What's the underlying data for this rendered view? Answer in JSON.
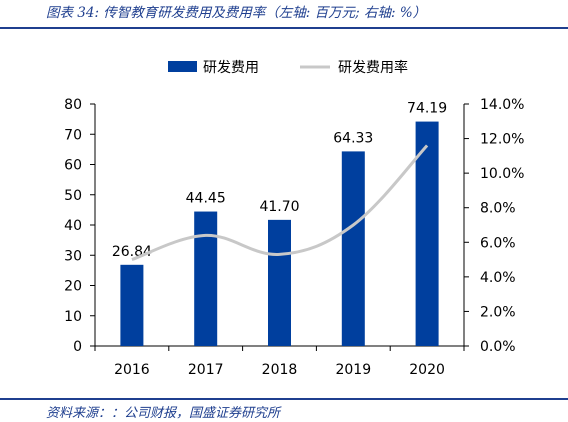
{
  "header": {
    "title": "图表 34: 传智教育研发费用及费用率（左轴: 百万元; 右轴: %）"
  },
  "footer": {
    "source": "资料来源：：公司财报，国盛证券研究所"
  },
  "colors": {
    "bar": "#003f9e",
    "line": "#c8c8c8",
    "rule": "#1f3f8f"
  },
  "chart_data": {
    "type": "bar",
    "categories": [
      "2016",
      "2017",
      "2018",
      "2019",
      "2020"
    ],
    "series": [
      {
        "name": "研发费用",
        "type": "bar",
        "axis": "left",
        "values": [
          26.84,
          44.45,
          41.7,
          64.33,
          74.19
        ],
        "value_labels": [
          "26.84",
          "44.45",
          "41.70",
          "64.33",
          "74.19"
        ]
      },
      {
        "name": "研发费用率",
        "type": "line",
        "axis": "right",
        "values": [
          5.0,
          6.4,
          5.3,
          7.0,
          11.6
        ]
      }
    ],
    "y_left": {
      "min": 0,
      "max": 80,
      "step": 10,
      "ticks": [
        "0",
        "10",
        "20",
        "30",
        "40",
        "50",
        "60",
        "70",
        "80"
      ]
    },
    "y_right": {
      "min": 0,
      "max": 14,
      "step": 2,
      "ticks": [
        "0.0%",
        "2.0%",
        "4.0%",
        "6.0%",
        "8.0%",
        "10.0%",
        "12.0%",
        "14.0%"
      ]
    },
    "legend_position": "top-center",
    "grid": false
  }
}
